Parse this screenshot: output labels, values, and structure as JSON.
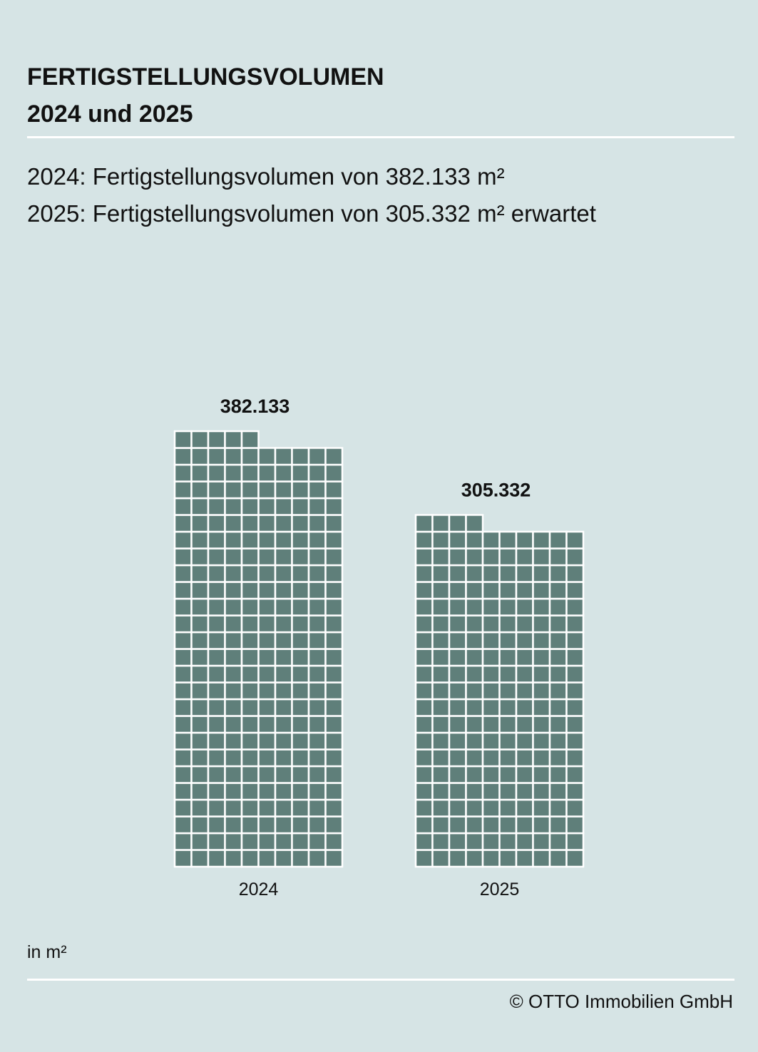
{
  "header": {
    "title_line1": "FERTIGSTELLUNGSVOLUMEN",
    "title_line2": "2024 und 2025"
  },
  "description": {
    "line1": "2024: Fertigstellungsvolumen von 382.133 m²",
    "line2": "2025: Fertigstellungsvolumen von 305.332 m² erwartet"
  },
  "chart_data": {
    "type": "bar",
    "categories": [
      "2024",
      "2025"
    ],
    "values": [
      382133,
      305332
    ],
    "value_labels": [
      "382.133",
      "305.332"
    ],
    "unit_label": "in m²",
    "bar_color": "#5f7f7a",
    "cell_border_color": "#ffffff",
    "grid": false,
    "legend": "none"
  },
  "footer": {
    "unit": "in m²",
    "copyright": "© OTTO Immobilien GmbH"
  },
  "colors": {
    "background": "#d6e4e5",
    "bar": "#5f7f7a",
    "rule": "#ffffff"
  }
}
